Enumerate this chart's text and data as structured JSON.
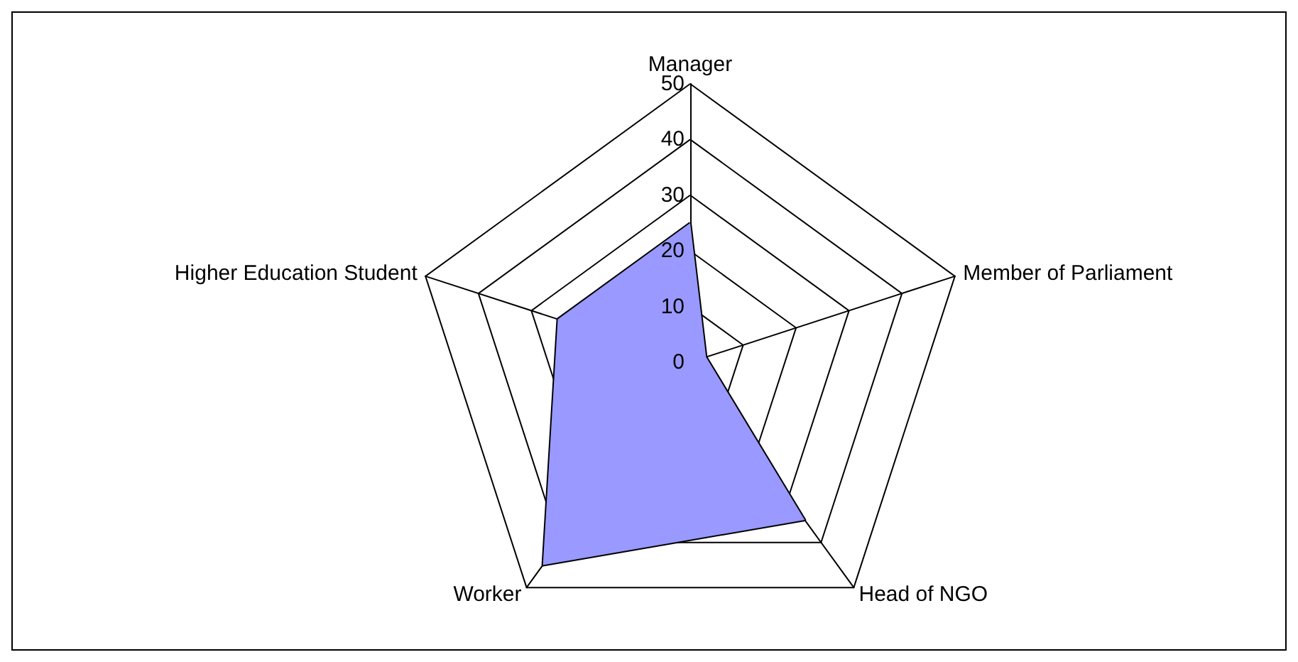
{
  "chart_data": {
    "type": "radar",
    "categories": [
      "Manager",
      "Member of Parliament",
      "Head of NGO",
      "Worker",
      "Higher Education Student"
    ],
    "series": [
      {
        "color": "#9999ff",
        "values": [
          25,
          3,
          35,
          45,
          25
        ]
      }
    ],
    "ylim": [
      0,
      50
    ],
    "yticks": [
      0,
      10,
      20,
      30,
      40,
      50
    ],
    "marker": "none"
  }
}
